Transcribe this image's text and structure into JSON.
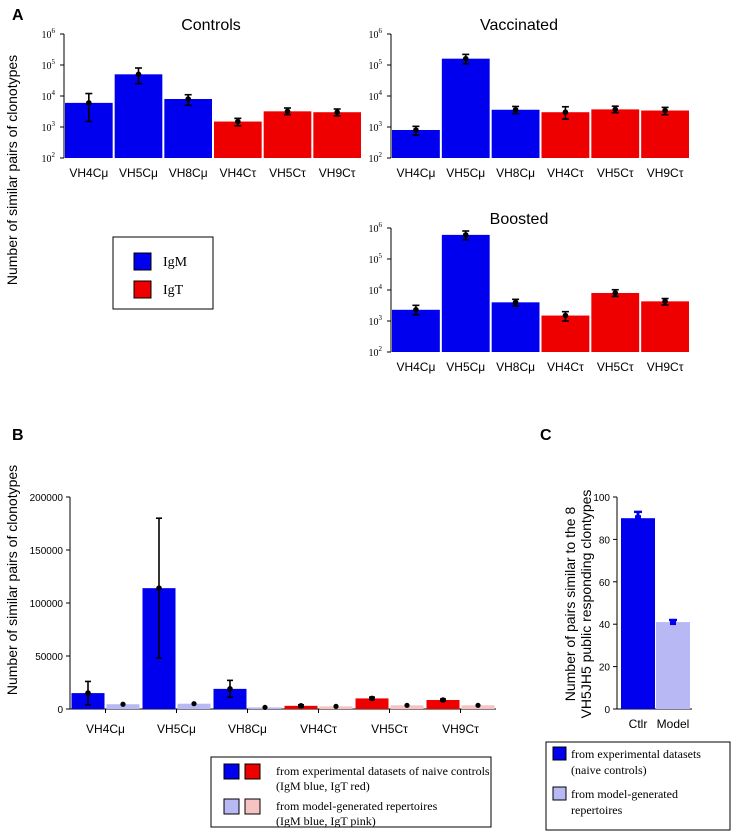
{
  "panels": {
    "a_label": "A",
    "b_label": "B",
    "c_label": "C",
    "a_ylabel": "Number of similar pairs of clonotypes"
  },
  "colors": {
    "igm": "#0000ee",
    "igt": "#ee0000",
    "igm_model": "#b8b8f5",
    "igt_model": "#f7c2c2"
  },
  "legend_a": {
    "igm": "IgM",
    "igt": "IgT"
  },
  "legend_b": {
    "exp_line1": "from experimental datasets of naive controls",
    "exp_line2": "(IgM blue, IgT red)",
    "model_line1": "from model-generated repertoires",
    "model_line2": "(IgM blue, IgT pink)"
  },
  "legend_c": {
    "exp_line1": "from experimental datasets",
    "exp_line2": "(naive controls)",
    "model_line1": "from model-generated",
    "model_line2": "repertoires"
  },
  "chart_data": [
    {
      "type": "bar",
      "title": "Controls",
      "yscale": "log",
      "ylim": [
        100,
        1000000
      ],
      "yticks": [
        {
          "base": "10",
          "exp": "2"
        },
        {
          "base": "10",
          "exp": "3"
        },
        {
          "base": "10",
          "exp": "4"
        },
        {
          "base": "10",
          "exp": "5"
        },
        {
          "base": "10",
          "exp": "6"
        }
      ],
      "categories": [
        "VH4Cμ",
        "VH5Cμ",
        "VH8Cμ",
        "VH4Cτ",
        "VH5Cτ",
        "VH9Cτ"
      ],
      "isotype": [
        "IgM",
        "IgM",
        "IgM",
        "IgT",
        "IgT",
        "IgT"
      ],
      "values": [
        6000,
        50000,
        8000,
        1500,
        3200,
        3000
      ],
      "err_low": [
        1500,
        25000,
        5000,
        1100,
        2500,
        2300
      ],
      "err_high": [
        12000,
        80000,
        11000,
        1900,
        4100,
        3800
      ]
    },
    {
      "type": "bar",
      "title": "Vaccinated",
      "yscale": "log",
      "ylim": [
        100,
        1000000
      ],
      "yticks": [
        {
          "base": "10",
          "exp": "2"
        },
        {
          "base": "10",
          "exp": "3"
        },
        {
          "base": "10",
          "exp": "4"
        },
        {
          "base": "10",
          "exp": "5"
        },
        {
          "base": "10",
          "exp": "6"
        }
      ],
      "categories": [
        "VH4Cμ",
        "VH5Cμ",
        "VH8Cμ",
        "VH4Cτ",
        "VH5Cτ",
        "VH9Cτ"
      ],
      "isotype": [
        "IgM",
        "IgM",
        "IgM",
        "IgT",
        "IgT",
        "IgT"
      ],
      "values": [
        800,
        160000,
        3600,
        3000,
        3700,
        3400
      ],
      "err_low": [
        550,
        110000,
        2700,
        1800,
        2900,
        2500
      ],
      "err_high": [
        1050,
        220000,
        4600,
        4500,
        4700,
        4300
      ]
    },
    {
      "type": "bar",
      "title": "Boosted",
      "yscale": "log",
      "ylim": [
        100,
        1000000
      ],
      "yticks": [
        {
          "base": "10",
          "exp": "2"
        },
        {
          "base": "10",
          "exp": "3"
        },
        {
          "base": "10",
          "exp": "4"
        },
        {
          "base": "10",
          "exp": "5"
        },
        {
          "base": "10",
          "exp": "6"
        }
      ],
      "categories": [
        "VH4Cμ",
        "VH5Cμ",
        "VH8Cμ",
        "VH4Cτ",
        "VH5Cτ",
        "VH9Cτ"
      ],
      "isotype": [
        "IgM",
        "IgM",
        "IgM",
        "IgT",
        "IgT",
        "IgT"
      ],
      "values": [
        2300,
        600000,
        4000,
        1500,
        8000,
        4300
      ],
      "err_low": [
        1600,
        420000,
        3000,
        1000,
        6200,
        3300
      ],
      "err_high": [
        3200,
        800000,
        5000,
        2000,
        10200,
        5300
      ]
    },
    {
      "type": "bar",
      "title": "",
      "ylabel": "Number of similar pairs of clonotypes",
      "yscale": "linear",
      "ylim": [
        0,
        200000
      ],
      "yticks": [
        "0",
        "50000",
        "100000",
        "150000",
        "200000"
      ],
      "ytick_values": [
        0,
        50000,
        100000,
        150000,
        200000
      ],
      "categories": [
        "VH4Cμ",
        "VH5Cμ",
        "VH8Cμ",
        "VH4Cτ",
        "VH5Cτ",
        "VH9Cτ"
      ],
      "isotype": [
        "IgM",
        "IgM",
        "IgM",
        "IgT",
        "IgT",
        "IgT"
      ],
      "series": [
        {
          "name": "experimental datasets of naive controls",
          "values": [
            15000,
            114000,
            19000,
            3000,
            10000,
            8500
          ],
          "err_low": [
            4000,
            48000,
            11000,
            2000,
            8800,
            7500
          ],
          "err_high": [
            26000,
            180000,
            27000,
            4000,
            11200,
            9500
          ]
        },
        {
          "name": "model-generated repertoires",
          "values": [
            4500,
            5000,
            1500,
            2500,
            3500,
            3500
          ]
        }
      ]
    },
    {
      "type": "bar",
      "title": "",
      "ylabel_line1": "Number of pairs similar to the 8",
      "ylabel_line2": "VH5JH5 public responding clontypes",
      "yscale": "linear",
      "ylim": [
        0,
        100
      ],
      "yticks": [
        "0",
        "20",
        "40",
        "60",
        "80",
        "100"
      ],
      "ytick_values": [
        0,
        20,
        40,
        60,
        80,
        100
      ],
      "categories": [
        "Ctlr",
        "Model"
      ],
      "values": [
        90,
        41
      ],
      "err_low": [
        88,
        40
      ],
      "err_high": [
        93,
        42
      ]
    }
  ]
}
